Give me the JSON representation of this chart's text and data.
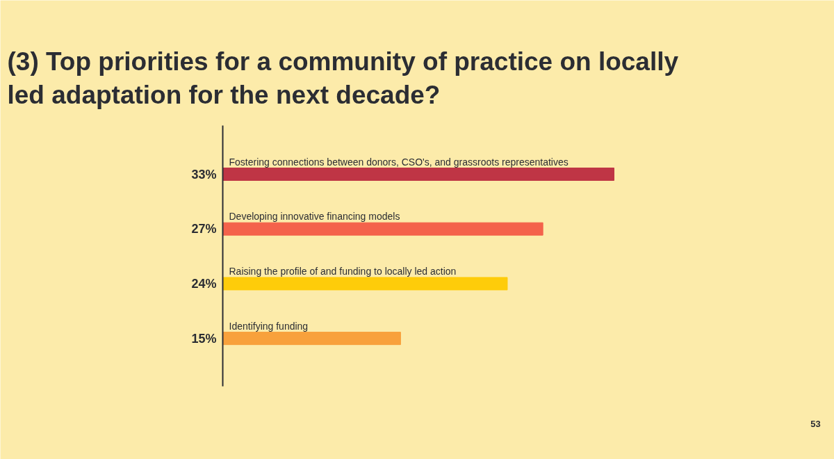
{
  "chart_data": {
    "type": "bar",
    "orientation": "horizontal",
    "title": "(3) Top priorities for a community of practice on locally led adaptation for the next decade?",
    "categories": [
      "Fostering connections between donors, CSO's, and grassroots representatives",
      "Developing innovative financing models",
      "Raising the profile of and funding to locally led action",
      "Identifying funding"
    ],
    "values": [
      33,
      27,
      24,
      15
    ],
    "value_labels": [
      "33%",
      "27%",
      "24%",
      "15%"
    ],
    "colors": [
      "#bf3545",
      "#f4624b",
      "#fecc0a",
      "#f8a13c"
    ],
    "annotations": [
      "53"
    ],
    "grid": false
  }
}
